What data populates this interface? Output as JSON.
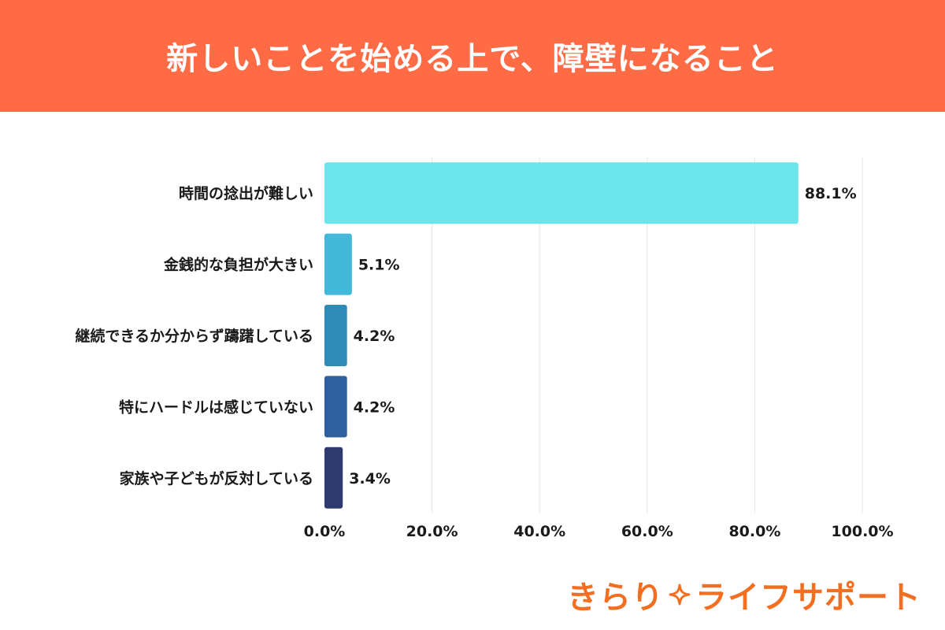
{
  "header": {
    "title": "新しいことを始める上で、障壁になること"
  },
  "chart_data": {
    "type": "bar",
    "orientation": "horizontal",
    "title": "新しいことを始める上で、障壁になること",
    "categories": [
      "時間の捻出が難しい",
      "金銭的な負担が大きい",
      "継続できるか分からず躊躇している",
      "特にハードルは感じていない",
      "家族や子どもが反対している"
    ],
    "values": [
      88.1,
      5.1,
      4.2,
      4.2,
      3.4
    ],
    "value_labels": [
      "88.1%",
      "5.1%",
      "4.2%",
      "4.2%",
      "3.4%"
    ],
    "bar_colors": [
      "#6be4ea",
      "#43b8d8",
      "#2e8bb8",
      "#2f5f9e",
      "#2f3a6e"
    ],
    "xlim": [
      0,
      100
    ],
    "x_ticks": [
      0,
      20,
      40,
      60,
      80,
      100
    ],
    "x_tick_labels": [
      "0.0%",
      "20.0%",
      "40.0%",
      "60.0%",
      "80.0%",
      "100.0%"
    ],
    "grid": true,
    "legend": "none"
  },
  "brand": {
    "text_left": "きらり",
    "text_right": "ライフサポート",
    "star_icon": "sparkle-icon",
    "color": "#f26f21"
  }
}
